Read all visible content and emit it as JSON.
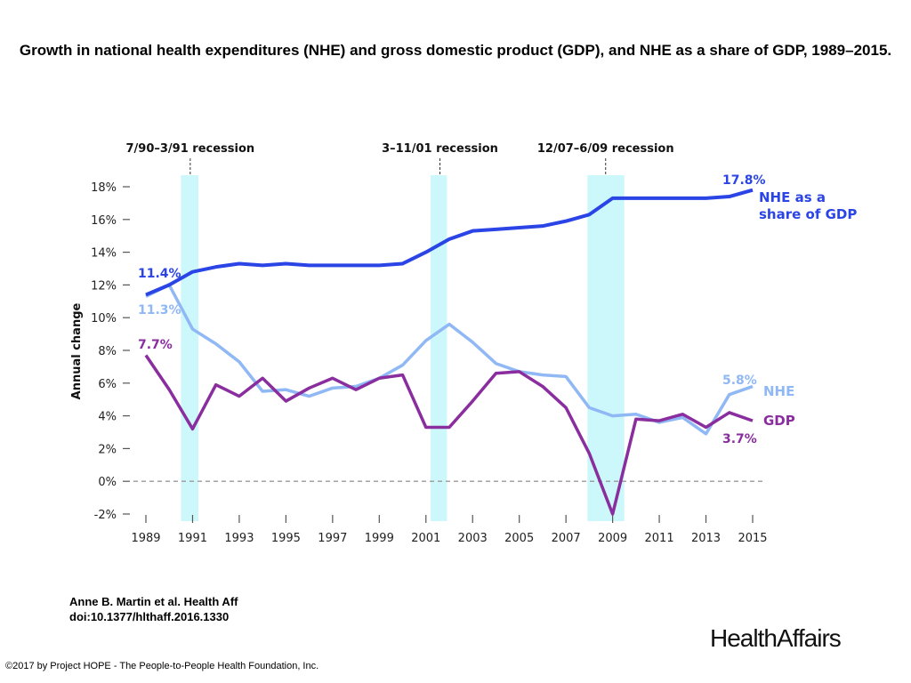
{
  "header": {
    "title": "Growth in national health expenditures (NHE) and gross domestic product (GDP), and NHE as a share of GDP, 1989–2015."
  },
  "footer": {
    "citation_line1": "Anne B. Martin et al. Health Aff",
    "citation_line2": "doi:10.1377/hlthaff.2016.1330",
    "copyright": "©2017 by Project HOPE - The People-to-People Health Foundation, Inc.",
    "logo": "HealthAffairs"
  },
  "chart_data": {
    "type": "line",
    "title": "Growth in national health expenditures (NHE) and gross domestic product (GDP), and NHE as a share of GDP, 1989–2015.",
    "xlabel": "",
    "ylabel": "Annual change",
    "ylim": [
      -2,
      18
    ],
    "yticks": [
      -2,
      0,
      2,
      4,
      6,
      8,
      10,
      12,
      14,
      16,
      18
    ],
    "ytick_labels": [
      "-2%",
      "0%",
      "2%",
      "4%",
      "6%",
      "8%",
      "10%",
      "12%",
      "14%",
      "16%",
      "18%"
    ],
    "xticks": [
      1989,
      1991,
      1993,
      1995,
      1997,
      1999,
      2001,
      2003,
      2005,
      2007,
      2009,
      2011,
      2013,
      2015
    ],
    "xtick_labels": [
      "1989",
      "1991",
      "1993",
      "1995",
      "1997",
      "1999",
      "2001",
      "2003",
      "2005",
      "2007",
      "2009",
      "2011",
      "2013",
      "2015"
    ],
    "x": [
      1989,
      1990,
      1991,
      1992,
      1993,
      1994,
      1995,
      1996,
      1997,
      1998,
      1999,
      2000,
      2001,
      2002,
      2003,
      2004,
      2005,
      2006,
      2007,
      2008,
      2009,
      2010,
      2011,
      2012,
      2013,
      2014,
      2015
    ],
    "series": [
      {
        "name": "NHE as a share of GDP",
        "label_lines": [
          "NHE as a",
          "share of GDP"
        ],
        "color": "#2a44e6",
        "start_label": "11.4%",
        "end_label": "17.8%",
        "values": [
          11.4,
          12.0,
          12.8,
          13.1,
          13.3,
          13.2,
          13.3,
          13.2,
          13.2,
          13.2,
          13.2,
          13.3,
          14.0,
          14.8,
          15.3,
          15.4,
          15.5,
          15.6,
          15.9,
          16.3,
          17.3,
          17.3,
          17.3,
          17.3,
          17.3,
          17.4,
          17.8
        ]
      },
      {
        "name": "NHE",
        "label_lines": [
          "NHE"
        ],
        "color": "#8fb8f5",
        "start_label": "11.3%",
        "end_label": "5.8%",
        "values": [
          11.3,
          12.0,
          9.3,
          8.4,
          7.3,
          5.5,
          5.6,
          5.2,
          5.7,
          5.8,
          6.3,
          7.1,
          8.6,
          9.6,
          8.5,
          7.2,
          6.7,
          6.5,
          6.4,
          4.5,
          4.0,
          4.1,
          3.6,
          3.9,
          2.9,
          5.3,
          5.8
        ]
      },
      {
        "name": "GDP",
        "label_lines": [
          "GDP"
        ],
        "color": "#8a2d9e",
        "start_label": "7.7%",
        "end_label": "3.7%",
        "values": [
          7.7,
          5.6,
          3.2,
          5.9,
          5.2,
          6.3,
          4.9,
          5.7,
          6.3,
          5.6,
          6.3,
          6.5,
          3.3,
          3.3,
          4.9,
          6.6,
          6.7,
          5.8,
          4.5,
          1.7,
          -2.0,
          3.8,
          3.7,
          4.1,
          3.3,
          4.2,
          3.7
        ]
      }
    ],
    "recessions": [
      {
        "label": "7/90–3/91 recession",
        "start": 1990.5,
        "end": 1991.25,
        "marker": 1990.9
      },
      {
        "label": "3–11/01 recession",
        "start": 2001.2,
        "end": 2001.9,
        "marker": 2001.6
      },
      {
        "label": "12/07–6/09 recession",
        "start": 2007.92,
        "end": 2009.5,
        "marker": 2008.7
      }
    ],
    "reference_line": 0,
    "grid": false
  }
}
